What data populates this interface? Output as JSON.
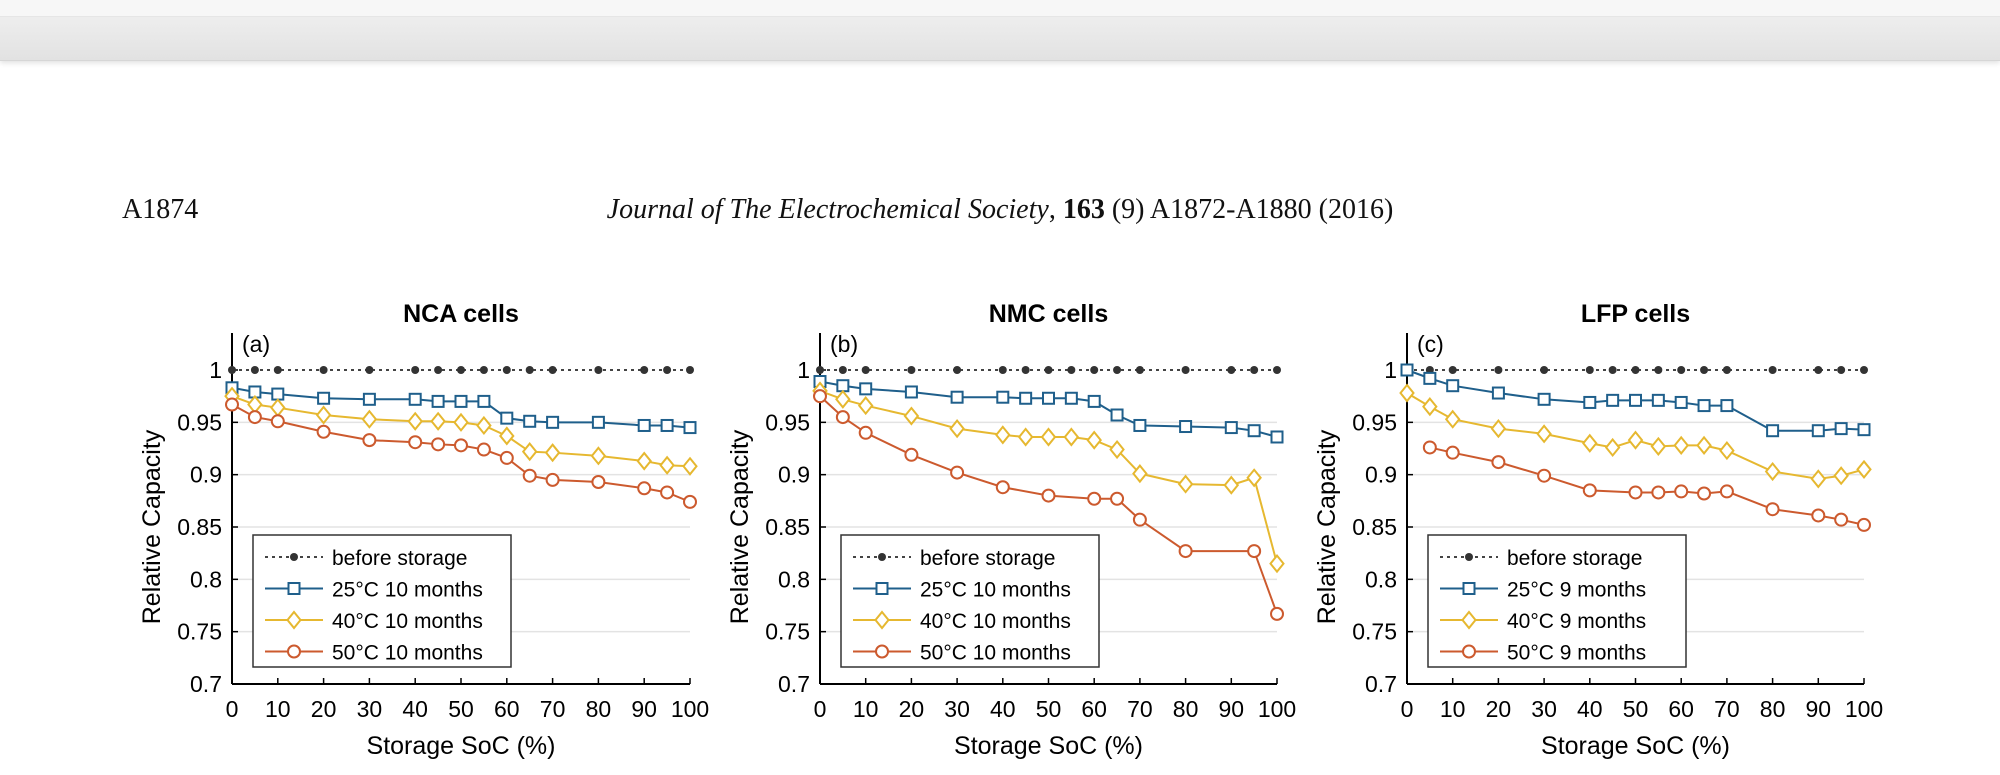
{
  "header": {
    "page_number": "A1874",
    "journal_name": "Journal of The Electrochemical Society",
    "sep": ", ",
    "volume": "163",
    "issue_pages": " (9) A1872-A1880 (2016)"
  },
  "colors": {
    "before": "#333333",
    "c25": "#1f5f8b",
    "c40": "#e6b830",
    "c50": "#cc5a2e"
  },
  "chart_data": [
    {
      "type": "line",
      "title": "NCA cells",
      "panel_label": "(a)",
      "xlabel": "Storage SoC (%)",
      "ylabel": "Relative Capacity",
      "xlim": [
        0,
        100
      ],
      "ylim": [
        0.7,
        1.0
      ],
      "xticks": [
        "0",
        "10",
        "20",
        "30",
        "40",
        "50",
        "60",
        "70",
        "80",
        "90",
        "100"
      ],
      "yticks": [
        "0.7",
        "0.75",
        "0.8",
        "0.85",
        "0.9",
        "0.95",
        "1"
      ],
      "legend_position": "bottom-left",
      "grid": "horizontal",
      "series": [
        {
          "name": "before storage",
          "marker": "dot",
          "dashed": true,
          "x": [
            0,
            5,
            10,
            20,
            30,
            40,
            45,
            50,
            55,
            60,
            65,
            70,
            80,
            90,
            95,
            100
          ],
          "y": [
            1,
            1,
            1,
            1,
            1,
            1,
            1,
            1,
            1,
            1,
            1,
            1,
            1,
            1,
            1,
            1
          ]
        },
        {
          "name": "25°C  10 months",
          "marker": "square",
          "x": [
            0,
            5,
            10,
            20,
            30,
            40,
            45,
            50,
            55,
            60,
            65,
            70,
            80,
            90,
            95,
            100
          ],
          "y": [
            0.983,
            0.979,
            0.977,
            0.973,
            0.972,
            0.972,
            0.97,
            0.97,
            0.97,
            0.954,
            0.951,
            0.95,
            0.95,
            0.947,
            0.947,
            0.945
          ]
        },
        {
          "name": "40°C  10 months",
          "marker": "diamond",
          "x": [
            0,
            5,
            10,
            20,
            30,
            40,
            45,
            50,
            55,
            60,
            65,
            70,
            80,
            90,
            95,
            100
          ],
          "y": [
            0.975,
            0.967,
            0.964,
            0.957,
            0.953,
            0.951,
            0.951,
            0.95,
            0.947,
            0.937,
            0.922,
            0.921,
            0.918,
            0.913,
            0.909,
            0.908
          ]
        },
        {
          "name": "50°C  10 months",
          "marker": "circle",
          "x": [
            0,
            5,
            10,
            20,
            30,
            40,
            45,
            50,
            55,
            60,
            65,
            70,
            80,
            90,
            95,
            100
          ],
          "y": [
            0.967,
            0.955,
            0.951,
            0.941,
            0.933,
            0.931,
            0.929,
            0.928,
            0.924,
            0.916,
            0.899,
            0.895,
            0.893,
            0.887,
            0.883,
            0.874
          ]
        }
      ]
    },
    {
      "type": "line",
      "title": "NMC cells",
      "panel_label": "(b)",
      "xlabel": "Storage SoC (%)",
      "ylabel": "Relative Capacity",
      "xlim": [
        0,
        100
      ],
      "ylim": [
        0.7,
        1.0
      ],
      "xticks": [
        "0",
        "10",
        "20",
        "30",
        "40",
        "50",
        "60",
        "70",
        "80",
        "90",
        "100"
      ],
      "yticks": [
        "0.7",
        "0.75",
        "0.8",
        "0.85",
        "0.9",
        "0.95",
        "1"
      ],
      "legend_position": "bottom-left",
      "grid": "horizontal",
      "series": [
        {
          "name": "before storage",
          "marker": "dot",
          "dashed": true,
          "x": [
            0,
            5,
            10,
            20,
            30,
            40,
            45,
            50,
            55,
            60,
            65,
            70,
            80,
            90,
            95,
            100
          ],
          "y": [
            1,
            1,
            1,
            1,
            1,
            1,
            1,
            1,
            1,
            1,
            1,
            1,
            1,
            1,
            1,
            1
          ]
        },
        {
          "name": "25°C  10 months",
          "marker": "square",
          "x": [
            0,
            5,
            10,
            20,
            30,
            40,
            45,
            50,
            55,
            60,
            65,
            70,
            80,
            90,
            95,
            100
          ],
          "y": [
            0.989,
            0.985,
            0.982,
            0.979,
            0.974,
            0.974,
            0.973,
            0.973,
            0.973,
            0.97,
            0.957,
            0.947,
            0.946,
            0.945,
            0.942,
            0.936
          ]
        },
        {
          "name": "40°C  10 months",
          "marker": "diamond",
          "x": [
            0,
            5,
            10,
            20,
            30,
            40,
            45,
            50,
            55,
            60,
            65,
            70,
            80,
            90,
            95,
            100
          ],
          "y": [
            0.98,
            0.972,
            0.966,
            0.956,
            0.944,
            0.938,
            0.936,
            0.936,
            0.936,
            0.933,
            0.924,
            0.901,
            0.891,
            0.89,
            0.897,
            0.815
          ]
        },
        {
          "name": "50°C  10 months",
          "marker": "circle",
          "x": [
            0,
            5,
            10,
            20,
            30,
            40,
            50,
            60,
            65,
            70,
            80,
            95,
            100
          ],
          "y": [
            0.975,
            0.955,
            0.94,
            0.919,
            0.902,
            0.888,
            0.88,
            0.877,
            0.877,
            0.857,
            0.827,
            0.827,
            0.767
          ]
        }
      ]
    },
    {
      "type": "line",
      "title": "LFP cells",
      "panel_label": "(c)",
      "xlabel": "Storage SoC (%)",
      "ylabel": "Relative Capacity",
      "xlim": [
        0,
        100
      ],
      "ylim": [
        0.7,
        1.0
      ],
      "xticks": [
        "0",
        "10",
        "20",
        "30",
        "40",
        "50",
        "60",
        "70",
        "80",
        "90",
        "100"
      ],
      "yticks": [
        "0.7",
        "0.75",
        "0.8",
        "0.85",
        "0.9",
        "0.95",
        "1"
      ],
      "legend_position": "bottom-left",
      "grid": "horizontal",
      "series": [
        {
          "name": "before storage",
          "marker": "dot",
          "dashed": true,
          "x": [
            0,
            5,
            10,
            20,
            30,
            40,
            45,
            50,
            55,
            60,
            65,
            70,
            80,
            90,
            95,
            100
          ],
          "y": [
            1,
            1,
            1,
            1,
            1,
            1,
            1,
            1,
            1,
            1,
            1,
            1,
            1,
            1,
            1,
            1
          ]
        },
        {
          "name": "25°C  9 months",
          "marker": "square",
          "x": [
            0,
            5,
            10,
            20,
            30,
            40,
            45,
            50,
            55,
            60,
            65,
            70,
            80,
            90,
            95,
            100
          ],
          "y": [
            1.0,
            0.992,
            0.985,
            0.978,
            0.972,
            0.969,
            0.971,
            0.971,
            0.971,
            0.969,
            0.966,
            0.966,
            0.942,
            0.942,
            0.944,
            0.943
          ]
        },
        {
          "name": "40°C  9 months",
          "marker": "diamond",
          "x": [
            0,
            5,
            10,
            20,
            30,
            40,
            45,
            50,
            55,
            60,
            65,
            70,
            80,
            90,
            95,
            100
          ],
          "y": [
            0.978,
            0.965,
            0.953,
            0.944,
            0.939,
            0.93,
            0.926,
            0.933,
            0.927,
            0.928,
            0.928,
            0.923,
            0.903,
            0.896,
            0.899,
            0.905
          ]
        },
        {
          "name": "50°C  9 months",
          "marker": "circle",
          "x": [
            5,
            10,
            20,
            30,
            40,
            50,
            55,
            60,
            65,
            70,
            80,
            90,
            95,
            100
          ],
          "y": [
            0.926,
            0.921,
            0.912,
            0.899,
            0.885,
            0.883,
            0.883,
            0.884,
            0.882,
            0.884,
            0.867,
            0.861,
            0.857,
            0.852
          ]
        }
      ]
    }
  ]
}
